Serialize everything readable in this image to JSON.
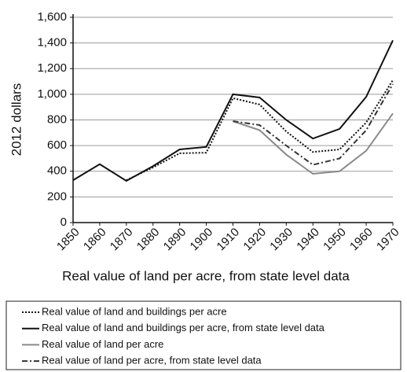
{
  "chart_data": {
    "type": "line",
    "ylabel": "2012 dollars",
    "xlabel": "Real value of land per acre, from state level data",
    "x": [
      1850,
      1860,
      1870,
      1880,
      1890,
      1900,
      1910,
      1920,
      1930,
      1940,
      1950,
      1960,
      1970
    ],
    "xlim": [
      1850,
      1970
    ],
    "xticks": [
      1850,
      1860,
      1870,
      1880,
      1890,
      1900,
      1910,
      1920,
      1930,
      1940,
      1950,
      1960,
      1970
    ],
    "ylim": [
      0,
      1600
    ],
    "yticks": [
      0,
      200,
      400,
      600,
      800,
      {
        "value": 1000,
        "label": "1,000"
      },
      {
        "value": 1200,
        "label": "1,200"
      },
      {
        "value": 1400,
        "label": "1,400"
      },
      {
        "value": 1600,
        "label": "1,600"
      }
    ],
    "grid": true,
    "legend": "bottom",
    "series": [
      {
        "name": "Real value of land and buildings per acre",
        "color": "#111111",
        "style": "dotted",
        "values": [
          null,
          null,
          330,
          430,
          540,
          545,
          970,
          920,
          710,
          550,
          570,
          780,
          1110
        ]
      },
      {
        "name": "Real value of land and buildings per acre, from state level data",
        "color": "#111111",
        "style": "solid",
        "values": [
          330,
          455,
          325,
          440,
          570,
          590,
          1000,
          975,
          800,
          655,
          730,
          980,
          1420
        ]
      },
      {
        "name": "Real value of land per acre",
        "color": "#8a8a8a",
        "style": "solid",
        "values": [
          null,
          null,
          null,
          null,
          null,
          null,
          790,
          720,
          530,
          380,
          400,
          560,
          850
        ]
      },
      {
        "name": "Real value of land per acre, from state level data",
        "color": "#333333",
        "style": "dashdot",
        "values": [
          null,
          null,
          null,
          null,
          null,
          null,
          790,
          760,
          600,
          450,
          500,
          720,
          1080
        ]
      }
    ]
  }
}
